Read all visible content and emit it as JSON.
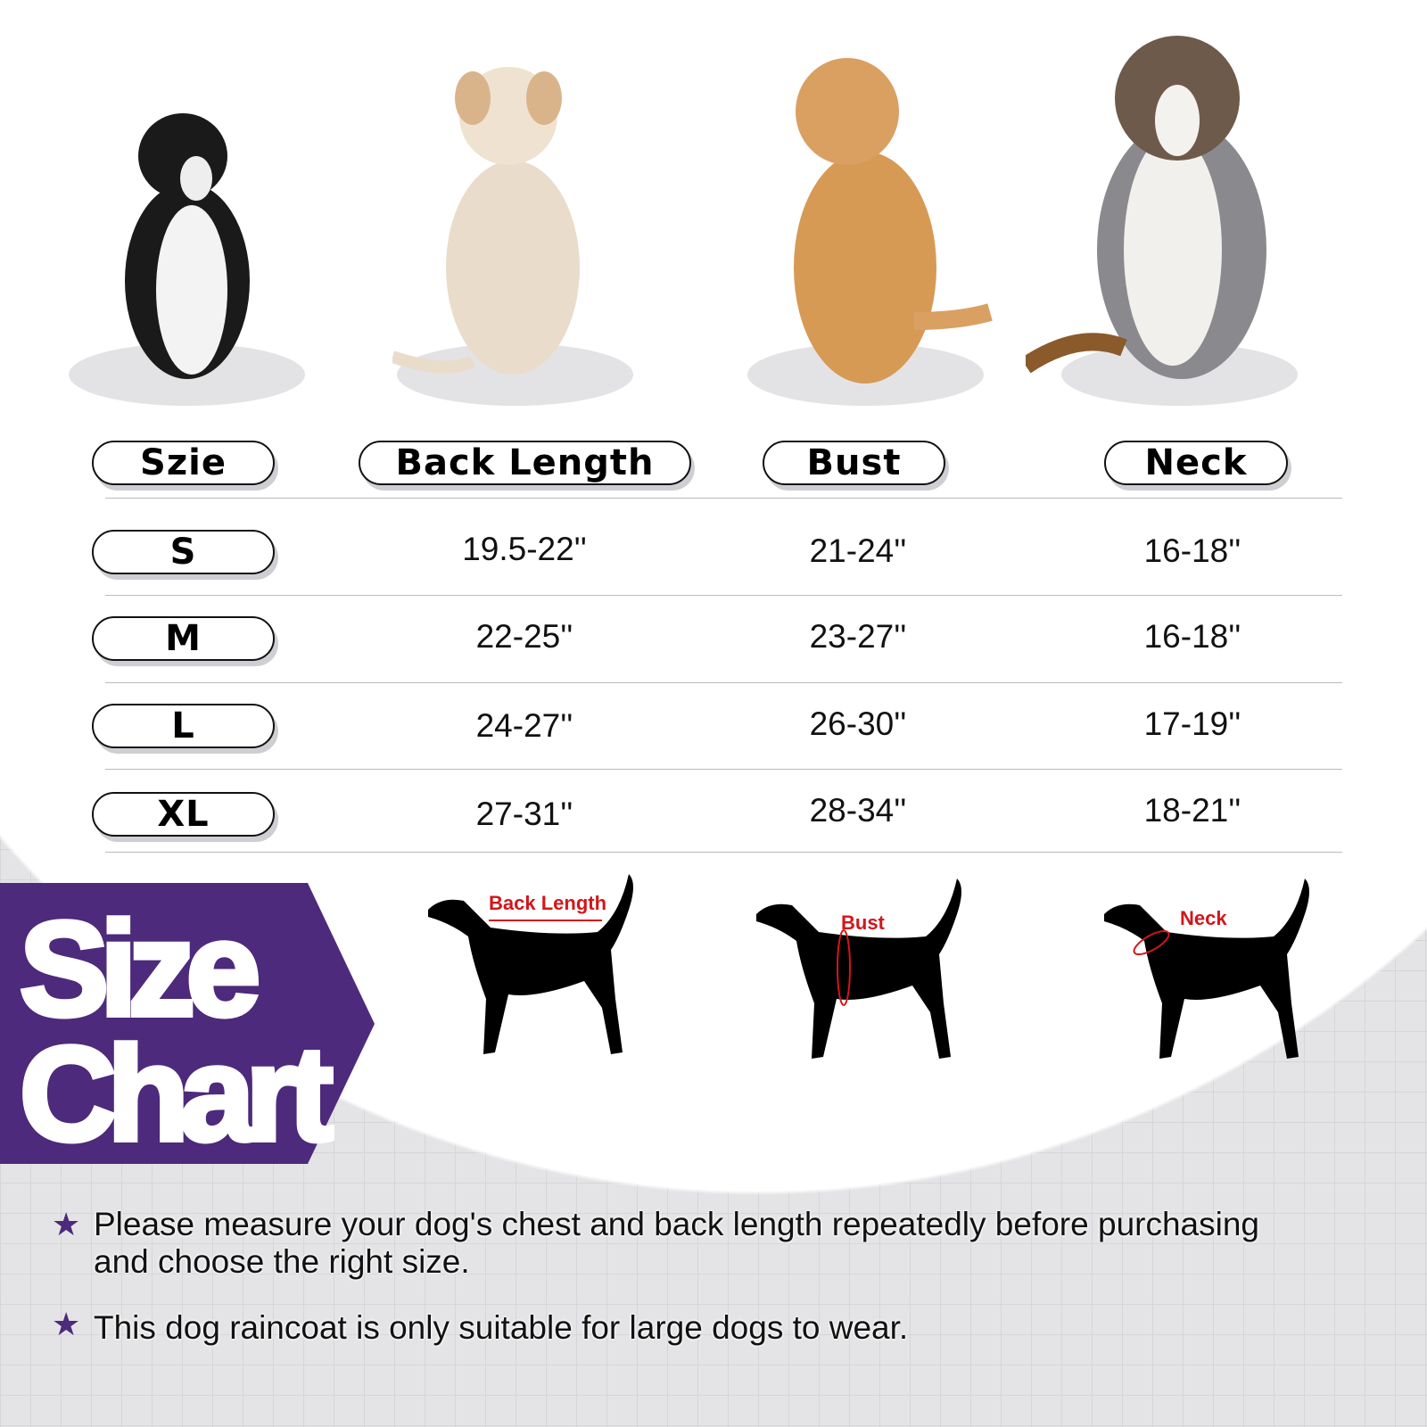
{
  "headers": {
    "size": "Szie",
    "back_length": "Back Length",
    "bust": "Bust",
    "neck": "Neck"
  },
  "rows": [
    {
      "size": "S",
      "back_length": "19.5-22''",
      "bust": "21-24''",
      "neck": "16-18''"
    },
    {
      "size": "M",
      "back_length": "22-25''",
      "bust": "23-27''",
      "neck": "16-18''"
    },
    {
      "size": "L",
      "back_length": "24-27''",
      "bust": "26-30''",
      "neck": "17-19''"
    },
    {
      "size": "XL",
      "back_length": "27-31''",
      "bust": "28-34''",
      "neck": "18-21''"
    }
  ],
  "banner": {
    "line1": "Size",
    "line2": "Chart",
    "color": "#4d2a7c"
  },
  "diagrams": {
    "back_length": "Back Length",
    "bust": "Bust",
    "neck": "Neck",
    "marker_color": "#d2161b"
  },
  "notes": [
    {
      "icon": "star-icon",
      "line1": "Please measure your dog's chest  and back length repeatedly before purchasing",
      "line2": "and choose the right size."
    },
    {
      "icon": "star-icon",
      "line1": "This dog raincoat is only suitable for large dogs to wear."
    }
  ]
}
